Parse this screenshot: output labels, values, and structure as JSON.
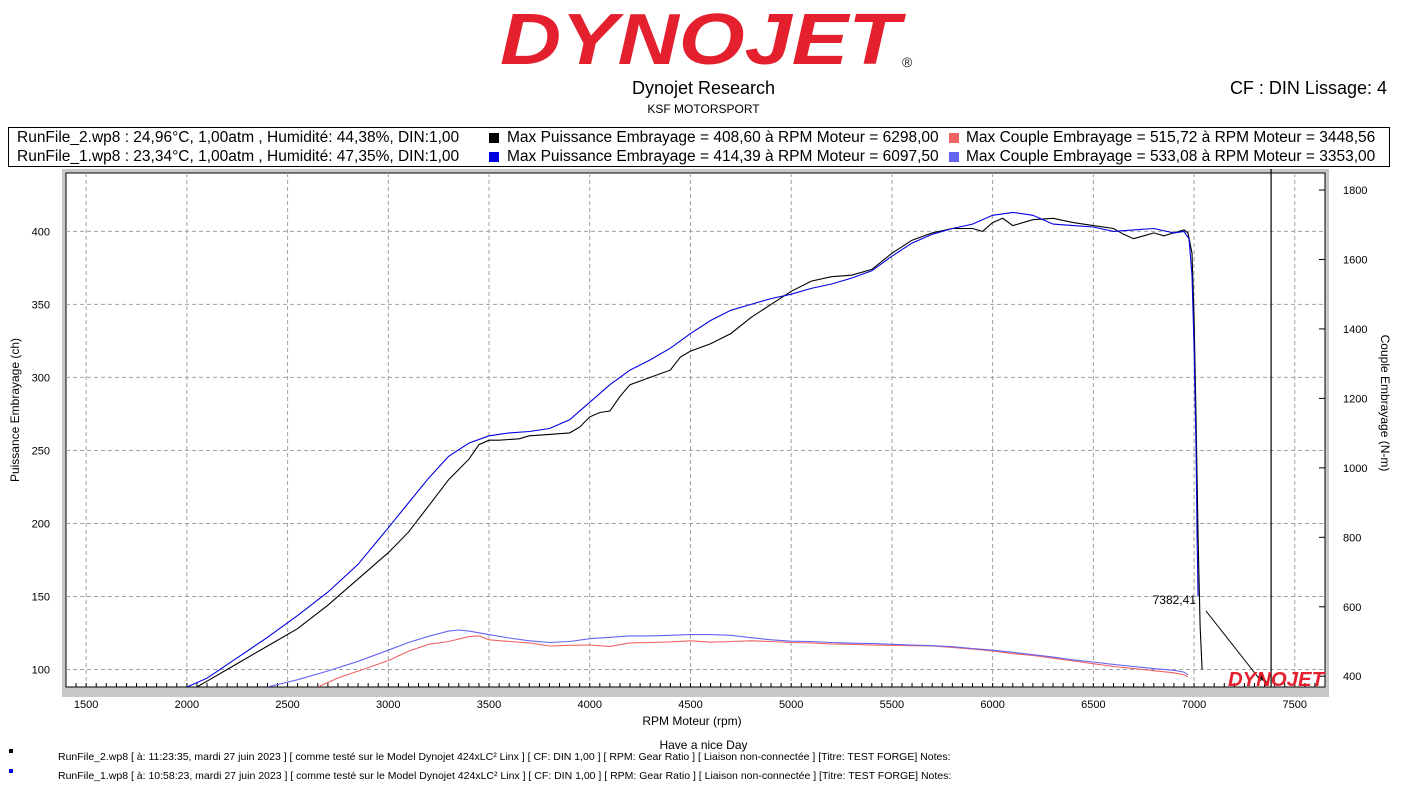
{
  "header": {
    "logo_text": "DYNOJET",
    "company": "Dynojet Research",
    "shop": "KSF MOTORSPORT",
    "cf_label": "CF : DIN Lissage: 4"
  },
  "legend": {
    "rows": [
      {
        "run": "RunFile_2.wp8 : 24,96°C, 1,00atm , Humidité: 44,38%, DIN:1,00",
        "power": "Max Puissance Embrayage = 408,60 à RPM Moteur = 6298,00",
        "torque": "Max Couple Embrayage = 515,72 à RPM Moteur = 3448,56",
        "power_color": "#000000",
        "torque_color": "#f06464"
      },
      {
        "run": "RunFile_1.wp8 : 23,34°C, 1,00atm , Humidité: 47,35%, DIN:1,00",
        "power": "Max Puissance Embrayage = 414,39 à RPM Moteur = 6097,50",
        "torque": "Max Couple Embrayage = 533,08 à RPM Moteur = 3353,00",
        "power_color": "#0000e0",
        "torque_color": "#6464f0"
      }
    ]
  },
  "chart_data": {
    "type": "line",
    "xlabel": "RPM Moteur (rpm)",
    "ylabel": "Puissance Embrayage (ch)",
    "y2label": "Couple Embrayage (N-m)",
    "xlim": [
      1400,
      7650
    ],
    "ylim": [
      88,
      440
    ],
    "y2lim": [
      369,
      1849
    ],
    "x_ticks": [
      1500,
      2000,
      2500,
      3000,
      3500,
      4000,
      4500,
      5000,
      5500,
      6000,
      6500,
      7000,
      7500
    ],
    "y_ticks": [
      100,
      150,
      200,
      250,
      300,
      350,
      400
    ],
    "y2_ticks": [
      400,
      600,
      800,
      1000,
      1200,
      1400,
      1600,
      1800
    ],
    "grid": true,
    "cursor": {
      "x": 7382.41,
      "label": "7382,41"
    },
    "watermark": "DYNOJET",
    "power_series": [
      {
        "name": "RunFile_2.wp8 Puissance",
        "color": "#000000",
        "points": [
          [
            2050,
            88
          ],
          [
            2100,
            92
          ],
          [
            2250,
            104
          ],
          [
            2400,
            116
          ],
          [
            2550,
            128
          ],
          [
            2700,
            144
          ],
          [
            2850,
            162
          ],
          [
            3000,
            180
          ],
          [
            3100,
            194
          ],
          [
            3200,
            212
          ],
          [
            3300,
            230
          ],
          [
            3400,
            244
          ],
          [
            3450,
            254
          ],
          [
            3500,
            257
          ],
          [
            3550,
            257
          ],
          [
            3650,
            258
          ],
          [
            3700,
            260
          ],
          [
            3800,
            261
          ],
          [
            3900,
            262
          ],
          [
            3950,
            266
          ],
          [
            4000,
            273
          ],
          [
            4050,
            276
          ],
          [
            4100,
            277
          ],
          [
            4150,
            287
          ],
          [
            4200,
            295
          ],
          [
            4300,
            300
          ],
          [
            4400,
            305
          ],
          [
            4450,
            314
          ],
          [
            4500,
            318
          ],
          [
            4600,
            323
          ],
          [
            4700,
            330
          ],
          [
            4800,
            341
          ],
          [
            4900,
            350
          ],
          [
            5000,
            359
          ],
          [
            5100,
            366
          ],
          [
            5200,
            369
          ],
          [
            5300,
            370
          ],
          [
            5400,
            374
          ],
          [
            5500,
            385
          ],
          [
            5600,
            394
          ],
          [
            5700,
            399
          ],
          [
            5800,
            402
          ],
          [
            5900,
            402
          ],
          [
            5950,
            400
          ],
          [
            6000,
            406
          ],
          [
            6050,
            409
          ],
          [
            6100,
            404
          ],
          [
            6200,
            408
          ],
          [
            6300,
            409
          ],
          [
            6400,
            406
          ],
          [
            6500,
            404
          ],
          [
            6600,
            402
          ],
          [
            6650,
            398
          ],
          [
            6700,
            395
          ],
          [
            6750,
            397
          ],
          [
            6800,
            399
          ],
          [
            6850,
            397
          ],
          [
            6900,
            399
          ],
          [
            6950,
            401
          ],
          [
            6970,
            399
          ],
          [
            6990,
            385
          ],
          [
            7000,
            340
          ],
          [
            7010,
            270
          ],
          [
            7020,
            190
          ],
          [
            7030,
            130
          ],
          [
            7040,
            100
          ]
        ]
      },
      {
        "name": "RunFile_1.wp8 Puissance",
        "color": "#0000e0",
        "points": [
          [
            2000,
            88
          ],
          [
            2100,
            94
          ],
          [
            2250,
            108
          ],
          [
            2400,
            122
          ],
          [
            2550,
            137
          ],
          [
            2700,
            153
          ],
          [
            2850,
            172
          ],
          [
            3000,
            197
          ],
          [
            3100,
            214
          ],
          [
            3200,
            231
          ],
          [
            3300,
            246
          ],
          [
            3400,
            255
          ],
          [
            3500,
            260
          ],
          [
            3600,
            262
          ],
          [
            3700,
            263
          ],
          [
            3800,
            265
          ],
          [
            3900,
            271
          ],
          [
            4000,
            283
          ],
          [
            4100,
            295
          ],
          [
            4200,
            305
          ],
          [
            4300,
            312
          ],
          [
            4400,
            320
          ],
          [
            4500,
            330
          ],
          [
            4600,
            339
          ],
          [
            4700,
            346
          ],
          [
            4800,
            350
          ],
          [
            4900,
            354
          ],
          [
            5000,
            357
          ],
          [
            5100,
            361
          ],
          [
            5200,
            364
          ],
          [
            5300,
            368
          ],
          [
            5400,
            373
          ],
          [
            5500,
            383
          ],
          [
            5600,
            392
          ],
          [
            5700,
            398
          ],
          [
            5800,
            402
          ],
          [
            5900,
            405
          ],
          [
            6000,
            411
          ],
          [
            6100,
            413
          ],
          [
            6200,
            411
          ],
          [
            6300,
            405
          ],
          [
            6400,
            404
          ],
          [
            6500,
            403
          ],
          [
            6600,
            400
          ],
          [
            6700,
            401
          ],
          [
            6800,
            402
          ],
          [
            6900,
            399
          ],
          [
            6950,
            400
          ],
          [
            6975,
            395
          ],
          [
            6990,
            370
          ],
          [
            7000,
            320
          ],
          [
            7010,
            250
          ],
          [
            7015,
            190
          ],
          [
            7020,
            150
          ]
        ]
      }
    ],
    "torque_series": [
      {
        "name": "RunFile_2.wp8 Couple",
        "color": "#f06464",
        "points": [
          [
            2650,
            369
          ],
          [
            2750,
            395
          ],
          [
            2900,
            425
          ],
          [
            3000,
            445
          ],
          [
            3100,
            472
          ],
          [
            3200,
            492
          ],
          [
            3300,
            500
          ],
          [
            3400,
            514
          ],
          [
            3450,
            516
          ],
          [
            3500,
            505
          ],
          [
            3600,
            500
          ],
          [
            3700,
            496
          ],
          [
            3800,
            487
          ],
          [
            3900,
            489
          ],
          [
            4000,
            490
          ],
          [
            4100,
            486
          ],
          [
            4200,
            496
          ],
          [
            4300,
            497
          ],
          [
            4400,
            499
          ],
          [
            4500,
            502
          ],
          [
            4600,
            498
          ],
          [
            4700,
            500
          ],
          [
            4800,
            502
          ],
          [
            4900,
            500
          ],
          [
            5000,
            497
          ],
          [
            5100,
            496
          ],
          [
            5200,
            493
          ],
          [
            5300,
            492
          ],
          [
            5400,
            490
          ],
          [
            5500,
            489
          ],
          [
            5600,
            488
          ],
          [
            5700,
            487
          ],
          [
            5800,
            483
          ],
          [
            5900,
            478
          ],
          [
            6000,
            473
          ],
          [
            6100,
            465
          ],
          [
            6200,
            460
          ],
          [
            6300,
            452
          ],
          [
            6400,
            444
          ],
          [
            6500,
            436
          ],
          [
            6600,
            428
          ],
          [
            6700,
            422
          ],
          [
            6800,
            416
          ],
          [
            6900,
            410
          ],
          [
            6950,
            404
          ],
          [
            6970,
            398
          ]
        ]
      },
      {
        "name": "RunFile_1.wp8 Couple",
        "color": "#6464f0",
        "points": [
          [
            2400,
            369
          ],
          [
            2550,
            390
          ],
          [
            2700,
            415
          ],
          [
            2850,
            443
          ],
          [
            3000,
            475
          ],
          [
            3100,
            497
          ],
          [
            3200,
            515
          ],
          [
            3300,
            530
          ],
          [
            3350,
            533
          ],
          [
            3400,
            530
          ],
          [
            3500,
            520
          ],
          [
            3600,
            510
          ],
          [
            3700,
            502
          ],
          [
            3800,
            497
          ],
          [
            3900,
            500
          ],
          [
            4000,
            508
          ],
          [
            4100,
            512
          ],
          [
            4200,
            516
          ],
          [
            4300,
            516
          ],
          [
            4400,
            518
          ],
          [
            4500,
            520
          ],
          [
            4600,
            520
          ],
          [
            4700,
            518
          ],
          [
            4800,
            511
          ],
          [
            4900,
            505
          ],
          [
            5000,
            501
          ],
          [
            5100,
            500
          ],
          [
            5200,
            497
          ],
          [
            5300,
            495
          ],
          [
            5400,
            494
          ],
          [
            5500,
            492
          ],
          [
            5600,
            490
          ],
          [
            5700,
            488
          ],
          [
            5800,
            485
          ],
          [
            5900,
            480
          ],
          [
            6000,
            475
          ],
          [
            6100,
            469
          ],
          [
            6200,
            462
          ],
          [
            6300,
            455
          ],
          [
            6400,
            447
          ],
          [
            6500,
            441
          ],
          [
            6600,
            434
          ],
          [
            6700,
            428
          ],
          [
            6800,
            422
          ],
          [
            6900,
            417
          ],
          [
            6950,
            412
          ],
          [
            6970,
            404
          ]
        ]
      }
    ]
  },
  "footer": {
    "bottom_title": "Have a nice Day",
    "lines": [
      {
        "text": "RunFile_2.wp8 [ à: 11:23:35, mardi 27 juin 2023 ] [ comme testé sur le Model Dynojet 424xLC² Linx ] [ CF: DIN 1,00 ] [ RPM: Gear Ratio ] [ Liaison non-connectée ] [Titre: TEST FORGE]  Notes:",
        "color": "#000000"
      },
      {
        "text": "RunFile_1.wp8 [ à: 10:58:23, mardi 27 juin 2023 ] [ comme testé sur le Model Dynojet 424xLC² Linx ] [ CF: DIN 1,00 ] [ RPM: Gear Ratio ] [ Liaison non-connectée ] [Titre: TEST FORGE]  Notes:",
        "color": "#0000e0"
      }
    ]
  }
}
